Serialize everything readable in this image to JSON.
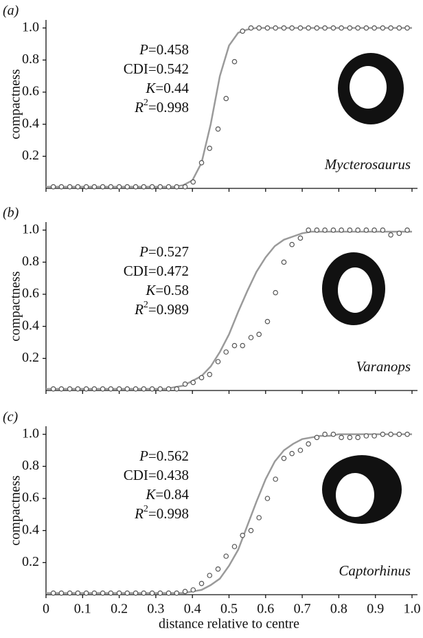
{
  "chart_data": [
    {
      "type": "scatter",
      "panel": "(a)",
      "ylabel": "compactness",
      "species": "Mycterosaurus",
      "params": [
        {
          "name": "P",
          "sign": "=",
          "value": 0.458
        },
        {
          "name": "CDI",
          "sign": "=",
          "value": 0.542
        },
        {
          "name": "K",
          "sign": "=",
          "value": 0.44
        },
        {
          "name": "R",
          "sup": "2",
          "sign": "=",
          "value": 0.998
        }
      ],
      "points": {
        "color": "#555555",
        "x": [
          0.02,
          0.042,
          0.065,
          0.087,
          0.11,
          0.132,
          0.155,
          0.177,
          0.2,
          0.222,
          0.245,
          0.267,
          0.29,
          0.312,
          0.335,
          0.357,
          0.38,
          0.402,
          0.425,
          0.447,
          0.47,
          0.492,
          0.515,
          0.537,
          0.56,
          0.582,
          0.605,
          0.627,
          0.65,
          0.672,
          0.695,
          0.717,
          0.74,
          0.762,
          0.785,
          0.807,
          0.83,
          0.852,
          0.875,
          0.897,
          0.92,
          0.942,
          0.965,
          0.987
        ],
        "values": [
          0.01,
          0.01,
          0.01,
          0.01,
          0.01,
          0.01,
          0.01,
          0.01,
          0.01,
          0.01,
          0.01,
          0.01,
          0.01,
          0.01,
          0.01,
          0.01,
          0.01,
          0.04,
          0.16,
          0.25,
          0.37,
          0.56,
          0.79,
          0.98,
          1.0,
          1.0,
          1.0,
          1.0,
          1.0,
          1.0,
          1.0,
          1.0,
          1.0,
          1.0,
          1.0,
          1.0,
          1.0,
          1.0,
          1.0,
          1.0,
          1.0,
          1.0,
          1.0,
          1.0
        ]
      },
      "fit": {
        "color": "#9a9a9a",
        "x": [
          0,
          0.025,
          0.05,
          0.075,
          0.1,
          0.125,
          0.15,
          0.175,
          0.2,
          0.225,
          0.25,
          0.275,
          0.3,
          0.325,
          0.35,
          0.375,
          0.4,
          0.425,
          0.45,
          0.475,
          0.5,
          0.525,
          0.55,
          0.575,
          0.6,
          0.625,
          0.65,
          0.675,
          0.7,
          0.725,
          0.75,
          0.775,
          0.8,
          0.825,
          0.85,
          0.875,
          0.9,
          0.925,
          0.95,
          0.975,
          1.0
        ],
        "values": [
          0.01,
          0.01,
          0.01,
          0.01,
          0.01,
          0.01,
          0.01,
          0.01,
          0.01,
          0.01,
          0.01,
          0.01,
          0.01,
          0.01,
          0.01,
          0.02,
          0.05,
          0.16,
          0.4,
          0.7,
          0.89,
          0.97,
          0.99,
          1.0,
          1.0,
          1.0,
          1.0,
          1.0,
          1.0,
          1.0,
          1.0,
          1.0,
          1.0,
          1.0,
          1.0,
          1.0,
          1.0,
          1.0,
          1.0,
          1.0,
          1.0
        ]
      },
      "xlim": [
        0,
        1.0
      ],
      "ylim": [
        0,
        1.05
      ],
      "xtick_labels": false,
      "xticks": [
        0,
        0.1,
        0.2,
        0.3,
        0.4,
        0.5,
        0.6,
        0.7,
        0.8,
        0.9,
        {
          "value": 1,
          "label": "1.0"
        }
      ],
      "yticks": [
        0.2,
        0.4,
        0.6,
        0.8,
        {
          "value": 1,
          "label": "1.0"
        }
      ]
    },
    {
      "type": "scatter",
      "panel": "(b)",
      "ylabel": "compactness",
      "species": "Varanops",
      "params": [
        {
          "name": "P",
          "sign": "=",
          "value": 0.527
        },
        {
          "name": "CDI",
          "sign": "=",
          "value": 0.472
        },
        {
          "name": "K",
          "sign": "=",
          "value": 0.58
        },
        {
          "name": "R",
          "sup": "2",
          "sign": "=",
          "value": 0.989
        }
      ],
      "points": {
        "color": "#555555",
        "x": [
          0.02,
          0.042,
          0.065,
          0.087,
          0.11,
          0.132,
          0.155,
          0.177,
          0.2,
          0.222,
          0.245,
          0.267,
          0.29,
          0.312,
          0.335,
          0.357,
          0.38,
          0.402,
          0.425,
          0.447,
          0.47,
          0.492,
          0.515,
          0.537,
          0.56,
          0.582,
          0.605,
          0.627,
          0.65,
          0.672,
          0.695,
          0.717,
          0.74,
          0.762,
          0.785,
          0.807,
          0.83,
          0.852,
          0.875,
          0.897,
          0.92,
          0.942,
          0.965,
          0.987
        ],
        "values": [
          0.01,
          0.01,
          0.01,
          0.01,
          0.01,
          0.01,
          0.01,
          0.01,
          0.01,
          0.01,
          0.01,
          0.01,
          0.01,
          0.01,
          0.01,
          0.01,
          0.04,
          0.05,
          0.08,
          0.1,
          0.18,
          0.24,
          0.28,
          0.28,
          0.33,
          0.35,
          0.43,
          0.61,
          0.8,
          0.91,
          0.95,
          1.0,
          1.0,
          1.0,
          1.0,
          1.0,
          1.0,
          1.0,
          1.0,
          1.0,
          1.0,
          0.97,
          0.98,
          1.0
        ]
      },
      "fit": {
        "color": "#9a9a9a",
        "x": [
          0,
          0.025,
          0.05,
          0.075,
          0.1,
          0.125,
          0.15,
          0.175,
          0.2,
          0.225,
          0.25,
          0.275,
          0.3,
          0.325,
          0.35,
          0.375,
          0.4,
          0.425,
          0.45,
          0.475,
          0.5,
          0.525,
          0.55,
          0.575,
          0.6,
          0.625,
          0.65,
          0.675,
          0.7,
          0.725,
          0.75,
          0.775,
          0.8,
          0.825,
          0.85,
          0.875,
          0.9,
          0.925,
          0.95,
          0.975,
          1.0
        ],
        "values": [
          0.01,
          0.01,
          0.01,
          0.01,
          0.01,
          0.01,
          0.01,
          0.01,
          0.01,
          0.01,
          0.01,
          0.01,
          0.01,
          0.01,
          0.02,
          0.03,
          0.06,
          0.09,
          0.15,
          0.24,
          0.35,
          0.49,
          0.62,
          0.74,
          0.83,
          0.9,
          0.94,
          0.96,
          0.98,
          0.99,
          0.99,
          0.99,
          0.99,
          0.99,
          0.99,
          0.99,
          0.99,
          0.99,
          0.99,
          0.99,
          0.99
        ]
      },
      "xlim": [
        0,
        1.0
      ],
      "ylim": [
        0,
        1.05
      ],
      "xtick_labels": false,
      "xticks": [
        0,
        0.1,
        0.2,
        0.3,
        0.4,
        0.5,
        0.6,
        0.7,
        0.8,
        0.9,
        {
          "value": 1,
          "label": "1.0"
        }
      ],
      "yticks": [
        0.2,
        0.4,
        0.6,
        0.8,
        {
          "value": 1,
          "label": "1.0"
        }
      ]
    },
    {
      "type": "scatter",
      "panel": "(c)",
      "ylabel": "compactness",
      "species": "Captorhinus",
      "xlabel": "distance relative to centre",
      "params": [
        {
          "name": "P",
          "sign": "=",
          "value": 0.562
        },
        {
          "name": "CDI",
          "sign": "=",
          "value": 0.438
        },
        {
          "name": "K",
          "sign": "=",
          "value": 0.84
        },
        {
          "name": "R",
          "sup": "2",
          "sign": "=",
          "value": 0.998
        }
      ],
      "points": {
        "color": "#555555",
        "x": [
          0.02,
          0.042,
          0.065,
          0.087,
          0.11,
          0.132,
          0.155,
          0.177,
          0.2,
          0.222,
          0.245,
          0.267,
          0.29,
          0.312,
          0.335,
          0.357,
          0.38,
          0.402,
          0.425,
          0.447,
          0.47,
          0.492,
          0.515,
          0.537,
          0.56,
          0.582,
          0.605,
          0.627,
          0.65,
          0.672,
          0.695,
          0.717,
          0.74,
          0.762,
          0.785,
          0.807,
          0.83,
          0.852,
          0.875,
          0.897,
          0.92,
          0.942,
          0.965,
          0.987
        ],
        "values": [
          0.01,
          0.01,
          0.01,
          0.01,
          0.01,
          0.01,
          0.01,
          0.01,
          0.01,
          0.01,
          0.01,
          0.01,
          0.01,
          0.01,
          0.01,
          0.01,
          0.02,
          0.03,
          0.07,
          0.12,
          0.16,
          0.24,
          0.3,
          0.37,
          0.4,
          0.48,
          0.6,
          0.72,
          0.85,
          0.88,
          0.9,
          0.94,
          0.98,
          1.0,
          1.0,
          0.98,
          0.98,
          0.98,
          0.99,
          0.99,
          1.0,
          1.0,
          1.0,
          1.0
        ]
      },
      "fit": {
        "color": "#9a9a9a",
        "x": [
          0,
          0.025,
          0.05,
          0.075,
          0.1,
          0.125,
          0.15,
          0.175,
          0.2,
          0.225,
          0.25,
          0.275,
          0.3,
          0.325,
          0.35,
          0.375,
          0.4,
          0.425,
          0.45,
          0.475,
          0.5,
          0.525,
          0.55,
          0.575,
          0.6,
          0.625,
          0.65,
          0.675,
          0.7,
          0.725,
          0.75,
          0.775,
          0.8,
          0.825,
          0.85,
          0.875,
          0.9,
          0.925,
          0.95,
          0.975,
          1.0
        ],
        "values": [
          0.01,
          0.01,
          0.01,
          0.01,
          0.01,
          0.01,
          0.01,
          0.01,
          0.01,
          0.01,
          0.01,
          0.01,
          0.01,
          0.01,
          0.01,
          0.01,
          0.02,
          0.03,
          0.06,
          0.1,
          0.18,
          0.28,
          0.43,
          0.58,
          0.72,
          0.83,
          0.9,
          0.94,
          0.97,
          0.98,
          0.99,
          0.99,
          1.0,
          1.0,
          1.0,
          1.0,
          1.0,
          1.0,
          1.0,
          1.0,
          1.0
        ]
      },
      "xlim": [
        0,
        1.0
      ],
      "ylim": [
        0,
        1.05
      ],
      "xtick_labels": true,
      "xticks": [
        0,
        0.1,
        0.2,
        0.3,
        0.4,
        0.5,
        0.6,
        0.7,
        0.8,
        0.9,
        {
          "value": 1,
          "label": "1.0"
        }
      ],
      "yticks": [
        0.2,
        0.4,
        0.6,
        0.8,
        {
          "value": 1,
          "label": "1.0"
        }
      ]
    }
  ]
}
